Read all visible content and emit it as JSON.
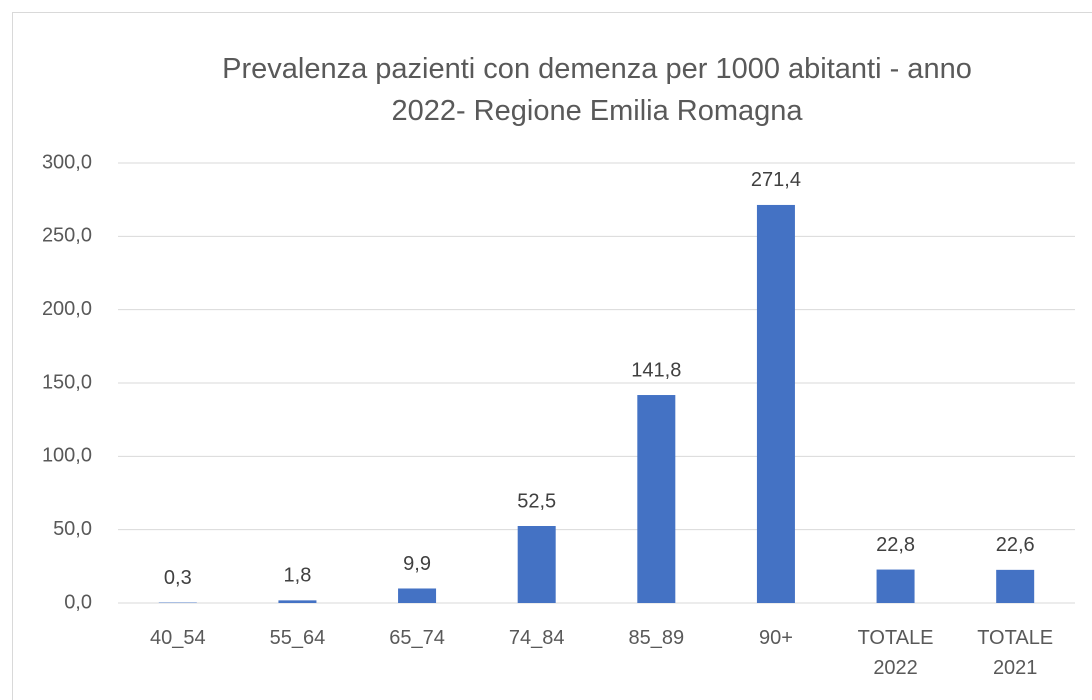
{
  "chart_data": {
    "type": "bar",
    "title": "Prevalenza pazienti con demenza per 1000 abitanti - anno 2022- Regione Emilia Romagna",
    "categories": [
      "40_54",
      "55_64",
      "65_74",
      "74_84",
      "85_89",
      "90+",
      "TOTALE 2022",
      "TOTALE 2021"
    ],
    "values": [
      0.3,
      1.8,
      9.9,
      52.5,
      141.8,
      271.4,
      22.8,
      22.6
    ],
    "value_labels": [
      "0,3",
      "1,8",
      "9,9",
      "52,5",
      "141,8",
      "271,4",
      "22,8",
      "22,6"
    ],
    "color": "#4472c4",
    "ylim": [
      0,
      300
    ],
    "yticks": [
      {
        "value": 0,
        "label": "0,0"
      },
      {
        "value": 50,
        "label": "50,0"
      },
      {
        "value": 100,
        "label": "100,0"
      },
      {
        "value": 150,
        "label": "150,0"
      },
      {
        "value": 200,
        "label": "200,0"
      },
      {
        "value": 250,
        "label": "250,0"
      },
      {
        "value": 300,
        "label": "300,0"
      }
    ],
    "grid": true
  }
}
